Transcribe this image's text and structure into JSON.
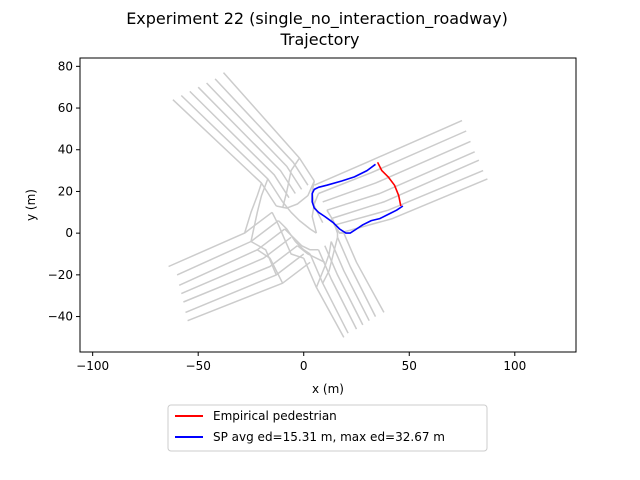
{
  "chart_data": {
    "type": "line",
    "title": "Experiment 22 (single_no_interaction_roadway)",
    "subtitle": "Trajectory",
    "xlabel": "x (m)",
    "ylabel": "y (m)",
    "xlim": [
      -106,
      129
    ],
    "ylim": [
      -57,
      84
    ],
    "xticks": [
      -100,
      -50,
      0,
      50,
      100
    ],
    "yticks": [
      -40,
      -20,
      0,
      20,
      40,
      60,
      80
    ],
    "grid": false,
    "legend_placement": "below-center",
    "road_color": "#cccccc",
    "road_lines": [
      [
        [
          -62,
          64
        ],
        [
          -20,
          24
        ],
        [
          -13,
          13
        ]
      ],
      [
        [
          -58,
          66
        ],
        [
          -17,
          26
        ],
        [
          -10,
          15
        ]
      ],
      [
        [
          -54,
          68
        ],
        [
          -14,
          28
        ],
        [
          -7,
          17
        ]
      ],
      [
        [
          -50,
          70
        ],
        [
          -11,
          30
        ],
        [
          -4,
          19
        ]
      ],
      [
        [
          -46,
          72
        ],
        [
          -8,
          32
        ],
        [
          -1,
          21
        ]
      ],
      [
        [
          -42,
          74
        ],
        [
          -5,
          34
        ],
        [
          2,
          23
        ]
      ],
      [
        [
          -38,
          77
        ],
        [
          -2,
          36
        ],
        [
          5,
          25
        ]
      ],
      [
        [
          75,
          54
        ],
        [
          30,
          34
        ],
        [
          5,
          23
        ]
      ],
      [
        [
          77,
          49
        ],
        [
          32,
          29
        ],
        [
          7,
          19
        ]
      ],
      [
        [
          79,
          44
        ],
        [
          34,
          24
        ],
        [
          9,
          15
        ]
      ],
      [
        [
          81,
          39
        ],
        [
          36,
          19
        ],
        [
          11,
          11
        ]
      ],
      [
        [
          83,
          35
        ],
        [
          38,
          15
        ],
        [
          13,
          7
        ]
      ],
      [
        [
          85,
          30
        ],
        [
          40,
          11
        ],
        [
          15,
          4
        ]
      ],
      [
        [
          87,
          26
        ],
        [
          42,
          7
        ],
        [
          17,
          0
        ]
      ],
      [
        [
          -64,
          -16
        ],
        [
          -28,
          0
        ],
        [
          -15,
          10
        ]
      ],
      [
        [
          -60,
          -20
        ],
        [
          -25,
          -4
        ],
        [
          -12,
          6
        ]
      ],
      [
        [
          -59,
          -25
        ],
        [
          -22,
          -8
        ],
        [
          -9,
          2
        ]
      ],
      [
        [
          -58,
          -29
        ],
        [
          -19,
          -12
        ],
        [
          -6,
          -2
        ]
      ],
      [
        [
          -57,
          -33
        ],
        [
          -16,
          -16
        ],
        [
          -3,
          -6
        ]
      ],
      [
        [
          -56,
          -38
        ],
        [
          -13,
          -20
        ],
        [
          0,
          -10
        ]
      ],
      [
        [
          -55,
          -42
        ],
        [
          -10,
          -24
        ],
        [
          3,
          -14
        ]
      ],
      [
        [
          19,
          -50
        ],
        [
          6,
          -26
        ],
        [
          0,
          -12
        ]
      ],
      [
        [
          21,
          -48
        ],
        [
          9,
          -24
        ],
        [
          3,
          -10
        ]
      ],
      [
        [
          25,
          -46
        ],
        [
          13,
          -22
        ],
        [
          7,
          -8
        ]
      ],
      [
        [
          28,
          -44
        ],
        [
          16,
          -20
        ],
        [
          10,
          -6
        ]
      ],
      [
        [
          31,
          -42
        ],
        [
          19,
          -18
        ],
        [
          13,
          -4
        ]
      ],
      [
        [
          34,
          -40
        ],
        [
          22,
          -16
        ],
        [
          16,
          -2
        ]
      ],
      [
        [
          38,
          -38
        ],
        [
          25,
          -14
        ],
        [
          19,
          0
        ]
      ],
      [
        [
          -20,
          24
        ],
        [
          -22,
          18
        ],
        [
          -25,
          10
        ],
        [
          -28,
          0
        ]
      ],
      [
        [
          -17,
          26
        ],
        [
          -20,
          18
        ],
        [
          -22,
          10
        ],
        [
          -25,
          -4
        ]
      ],
      [
        [
          -2,
          36
        ],
        [
          -6,
          30
        ],
        [
          -8,
          20
        ],
        [
          -10,
          12
        ]
      ],
      [
        [
          5,
          25
        ],
        [
          4,
          20
        ],
        [
          5,
          13
        ],
        [
          9,
          5
        ]
      ],
      [
        [
          7,
          19
        ],
        [
          5,
          14
        ],
        [
          4,
          8
        ],
        [
          6,
          0
        ]
      ],
      [
        [
          -13,
          13
        ],
        [
          -8,
          12
        ],
        [
          -3,
          14
        ],
        [
          2,
          18
        ],
        [
          5,
          25
        ]
      ],
      [
        [
          -10,
          15
        ],
        [
          -6,
          10
        ],
        [
          -2,
          6
        ],
        [
          3,
          2
        ],
        [
          6,
          0
        ]
      ],
      [
        [
          -15,
          10
        ],
        [
          -12,
          4
        ],
        [
          -9,
          -3
        ],
        [
          -6,
          -10
        ],
        [
          0,
          -12
        ]
      ],
      [
        [
          -12,
          6
        ],
        [
          -8,
          2
        ],
        [
          -4,
          -4
        ],
        [
          0,
          -8
        ],
        [
          3,
          -10
        ]
      ],
      [
        [
          -9,
          2
        ],
        [
          -5,
          -2
        ],
        [
          -1,
          -6
        ],
        [
          3,
          -8
        ],
        [
          7,
          -8
        ]
      ],
      [
        [
          13,
          -4
        ],
        [
          12,
          -10
        ],
        [
          10,
          -16
        ],
        [
          6,
          -26
        ]
      ],
      [
        [
          16,
          -2
        ],
        [
          14,
          -10
        ],
        [
          12,
          -18
        ],
        [
          9,
          -24
        ]
      ],
      [
        [
          11,
          11
        ],
        [
          14,
          6
        ],
        [
          16,
          0
        ],
        [
          16,
          -2
        ]
      ],
      [
        [
          13,
          7
        ],
        [
          15,
          3
        ],
        [
          17,
          0
        ],
        [
          19,
          0
        ]
      ],
      [
        [
          -25,
          -4
        ],
        [
          -18,
          -8
        ],
        [
          -13,
          -20
        ]
      ],
      [
        [
          -22,
          -8
        ],
        [
          -16,
          -12
        ],
        [
          -10,
          -24
        ]
      ],
      [
        [
          -3,
          -6
        ],
        [
          2,
          -10
        ],
        [
          6,
          -12
        ],
        [
          10,
          -14
        ]
      ]
    ],
    "series": [
      {
        "name": "Empirical pedestrian",
        "color": "#ff0000",
        "x": [
          35,
          37,
          40,
          43,
          45,
          46
        ],
        "y": [
          34,
          30,
          27,
          23,
          18,
          13
        ]
      },
      {
        "name": "SP avg ed=15.31 m, max ed=32.67 m",
        "color": "#0000ff",
        "x": [
          34,
          30,
          24,
          18,
          11,
          7,
          5,
          4,
          4,
          5,
          7,
          10,
          14,
          17,
          20,
          22,
          25,
          28,
          32,
          36,
          40,
          44,
          47
        ],
        "y": [
          33,
          30,
          27,
          25,
          23,
          22,
          21,
          19,
          15,
          12,
          10,
          8,
          5,
          2,
          0,
          0,
          2,
          4,
          6,
          7,
          9,
          11,
          13
        ]
      }
    ]
  }
}
